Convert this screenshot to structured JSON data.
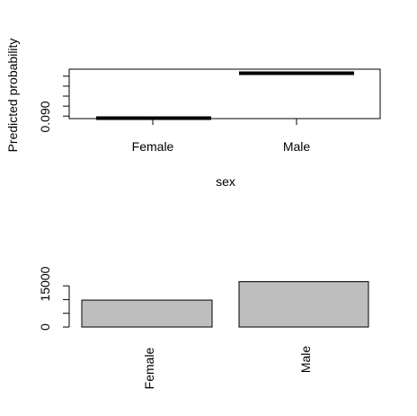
{
  "chart_data": [
    {
      "type": "line",
      "title": "",
      "xlabel": "sex",
      "ylabel": "Predicted probability",
      "categories": [
        "Female",
        "Male"
      ],
      "values": [
        0.0896,
        0.0986
      ],
      "ylim": [
        0.0895,
        0.0994
      ],
      "y_tick_labels": [
        "0.090"
      ],
      "grid": false,
      "legend": "none"
    },
    {
      "type": "bar",
      "title": "",
      "xlabel": "",
      "ylabel": "",
      "categories": [
        "Female",
        "Male"
      ],
      "values": [
        9800,
        16500
      ],
      "ylim": [
        0,
        17000
      ],
      "y_tick_labels": [
        "0",
        "15000"
      ],
      "bar_color": "#BEBEBE",
      "grid": false,
      "legend": "none"
    }
  ]
}
